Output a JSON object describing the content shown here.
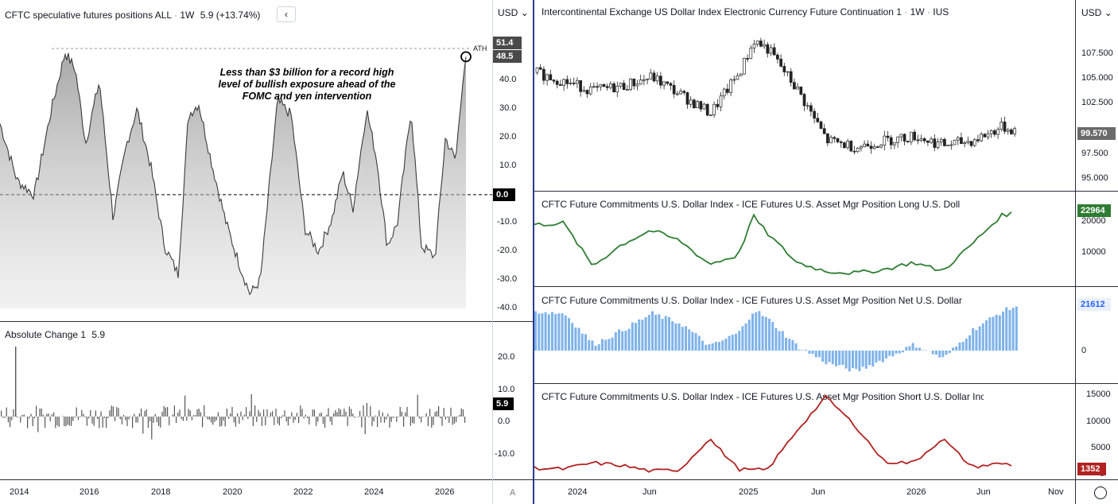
{
  "left": {
    "top_pane": {
      "title": "CFTC speculative futures positions ALL",
      "interval": "1W",
      "value": "5.9 (+13.74%)",
      "currency": "USD",
      "annotation_lines": [
        "Less than $3 billion for a record high",
        "level of bullish exposure ahead of the",
        "FOMC and yen intervention"
      ],
      "ath_label": "ATH",
      "tag_high": "51.4",
      "tag_last": "48.5",
      "tag_zero": "0.0",
      "y_ticks": [
        "40.0",
        "30.0",
        "20.0",
        "10.0",
        "-10.0",
        "-20.0",
        "-30.0",
        "-40.0"
      ]
    },
    "bottom_pane": {
      "title": "Absolute Change 1",
      "value": "5.9",
      "tag": "5.9",
      "y_ticks": [
        "20.0",
        "10.0",
        "0.0",
        "-10.0"
      ]
    },
    "x_labels": [
      "2014",
      "2016",
      "2018",
      "2020",
      "2022",
      "2024",
      "2026"
    ],
    "corner": "A"
  },
  "right": {
    "currency": "USD",
    "pane1": {
      "title": "Intercontinental Exchange US Dollar Index Electronic Currency Future Continuation 1",
      "interval": "1W",
      "exchange": "IUS",
      "tag": "99.570",
      "y_ticks": [
        "107.500",
        "105.000",
        "102.500",
        "97.500",
        "95.000"
      ]
    },
    "pane2": {
      "title": "CFTC Future Commitments U.S. Dollar Index - ICE Futures U.S. Asset Mgr Position Long U.S. Doll",
      "tag": "22964",
      "y_ticks": [
        "20000",
        "10000"
      ],
      "color": "#2e7d32"
    },
    "pane3": {
      "title": "CFTC Future Commitments U.S. Dollar Index - ICE Futures U.S. Asset Mgr Position Net U.S. Dollar",
      "tag": "21612",
      "y_ticks": [
        "0"
      ],
      "color": "#7fb3ea"
    },
    "pane4": {
      "title": "CFTC Future Commitments U.S. Dollar Index - ICE Futures U.S. Asset Mgr Position Short U.S. Dollar Inc",
      "tag": "1352",
      "y_ticks": [
        "15000",
        "10000",
        "5000",
        "0"
      ],
      "color": "#b22222"
    },
    "x_labels": [
      "2024",
      "Jun",
      "2025",
      "Jun",
      "2026",
      "Jun",
      "Nov"
    ]
  },
  "chart_data": [
    {
      "type": "area",
      "title": "CFTC speculative futures positions ALL",
      "x": [
        2013.0,
        2013.5,
        2014.0,
        2014.5,
        2014.9,
        2015.2,
        2015.5,
        2015.9,
        2016.3,
        2016.7,
        2017.0,
        2017.4,
        2017.8,
        2018.2,
        2018.5,
        2018.8,
        2019.2,
        2019.6,
        2020.0,
        2020.3,
        2020.6,
        2020.9,
        2021.1,
        2021.5,
        2021.9,
        2022.3,
        2022.7,
        2023.0,
        2023.3,
        2023.7,
        2024.0,
        2024.3,
        2024.6,
        2025.0,
        2025.3,
        2025.7,
        2026.0,
        2026.3,
        2026.5,
        2026.6
      ],
      "y": [
        25,
        5,
        0,
        30,
        50,
        44,
        18,
        40,
        -8,
        18,
        30,
        10,
        -18,
        -28,
        28,
        32,
        10,
        -10,
        -25,
        -35,
        -30,
        8,
        33,
        28,
        -12,
        -20,
        -8,
        8,
        -5,
        30,
        12,
        -18,
        -10,
        30,
        -18,
        -22,
        20,
        12,
        40,
        48.5
      ],
      "ylim": [
        -40,
        51.4
      ],
      "ath": 51.4
    },
    {
      "type": "bar",
      "title": "Absolute Change 1",
      "last": 5.9,
      "ylim": [
        -12,
        25
      ]
    },
    {
      "type": "line",
      "title": "Intercontinental Exchange US Dollar Index Electronic Currency Future Continuation 1",
      "x_dates": [
        "2023-10",
        "2023-12",
        "2024-02",
        "2024-04",
        "2024-06",
        "2024-08",
        "2024-10",
        "2024-12",
        "2025-01",
        "2025-02",
        "2025-04",
        "2025-06",
        "2025-08",
        "2025-10",
        "2025-12",
        "2026-02",
        "2026-04",
        "2026-06",
        "2026-07"
      ],
      "y": [
        106,
        105,
        104,
        104.5,
        105.5,
        103.5,
        101.5,
        106,
        109.5,
        108.5,
        104,
        98.5,
        97.8,
        98.5,
        99,
        98,
        98.5,
        100,
        99.57
      ]
    },
    {
      "type": "line",
      "title": "CFTC Future Commitments U.S. Dollar Index - ICE Futures U.S. Asset Mgr Position Long U.S. Doll",
      "x_dates": [
        "2023-10",
        "2023-12",
        "2024-02",
        "2024-04",
        "2024-06",
        "2024-08",
        "2024-10",
        "2024-12",
        "2025-01",
        "2025-02",
        "2025-04",
        "2025-06",
        "2025-08",
        "2025-10",
        "2025-12",
        "2026-02",
        "2026-04",
        "2026-06",
        "2026-07"
      ],
      "y": [
        19500,
        20000,
        8000,
        14000,
        18000,
        15000,
        8500,
        11000,
        22000,
        17000,
        9000,
        6500,
        6000,
        7000,
        9000,
        6500,
        14000,
        22000,
        22964
      ]
    },
    {
      "type": "bar",
      "title": "CFTC Future Commitments U.S. Dollar Index - ICE Futures U.S. Asset Mgr Position Net U.S. Dollar",
      "x_dates": [
        "2023-10",
        "2023-12",
        "2024-02",
        "2024-04",
        "2024-06",
        "2024-08",
        "2024-10",
        "2024-12",
        "2025-01",
        "2025-02",
        "2025-04",
        "2025-06",
        "2025-08",
        "2025-10",
        "2025-12",
        "2026-02",
        "2026-04",
        "2026-06",
        "2026-07"
      ],
      "y": [
        19000,
        18000,
        3000,
        10000,
        18000,
        13000,
        2000,
        9000,
        20000,
        15000,
        2000,
        -6000,
        -10000,
        -4000,
        3000,
        -4000,
        10000,
        19000,
        21612
      ]
    },
    {
      "type": "line",
      "title": "CFTC Future Commitments U.S. Dollar Index - ICE Futures U.S. Asset Mgr Position Short U.S. Dollar Inc",
      "x_dates": [
        "2023-10",
        "2023-12",
        "2024-02",
        "2024-04",
        "2024-06",
        "2024-08",
        "2024-10",
        "2024-12",
        "2025-01",
        "2025-02",
        "2025-04",
        "2025-06",
        "2025-08",
        "2025-10",
        "2025-12",
        "2026-02",
        "2026-04",
        "2026-06",
        "2026-07"
      ],
      "y": [
        800,
        600,
        1800,
        1300,
        200,
        500,
        6500,
        600,
        400,
        500,
        8000,
        14500,
        9000,
        2000,
        1800,
        6500,
        1000,
        1700,
        1352
      ],
      "ylim": [
        0,
        15000
      ]
    }
  ]
}
